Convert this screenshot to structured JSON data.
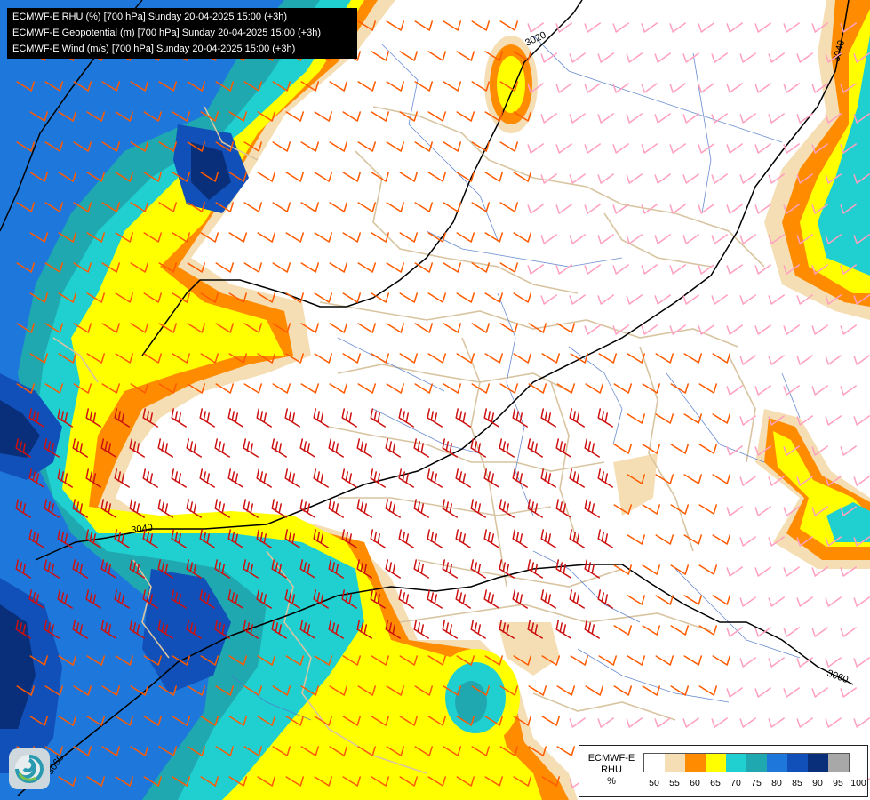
{
  "header": {
    "line1": "ECMWF-E RHU (%) [700 hPa] Sunday 20-04-2025 15:00 (+3h)",
    "line2": "ECMWF-E Geopotential (m) [700 hPa] Sunday 20-04-2025 15:00 (+3h)",
    "line3": "ECMWF-E Wind (m/s) [700 hPa] Sunday 20-04-2025 15:00 (+3h)"
  },
  "contour_labels": {
    "c3020": "3020",
    "c3040_top": "3040",
    "c3040_left": "3040",
    "c3060_right": "3060",
    "c3060_bottom": "3060"
  },
  "legend": {
    "title1": "ECMWF-E",
    "title2": "RHU",
    "title3": "%",
    "levels": [
      "50",
      "55",
      "60",
      "65",
      "70",
      "75",
      "80",
      "85",
      "90",
      "95",
      "100"
    ],
    "colors": [
      "#ffffff",
      "#f5deb3",
      "#ff8c00",
      "#ffff00",
      "#20d0d0",
      "#20a8b0",
      "#1e78dc",
      "#1050b8",
      "#0a2f7a",
      "#a8a8a8",
      "#585858"
    ]
  },
  "colors": {
    "wind_strong": "#cc1010",
    "wind_medium": "#ff5a00",
    "wind_light": "#ffa0c0",
    "contour": "#000000",
    "borders": "#d8c4a0",
    "rivers": "#5078c8"
  },
  "icons": {
    "logo": "ecmwf-spiral-logo"
  }
}
